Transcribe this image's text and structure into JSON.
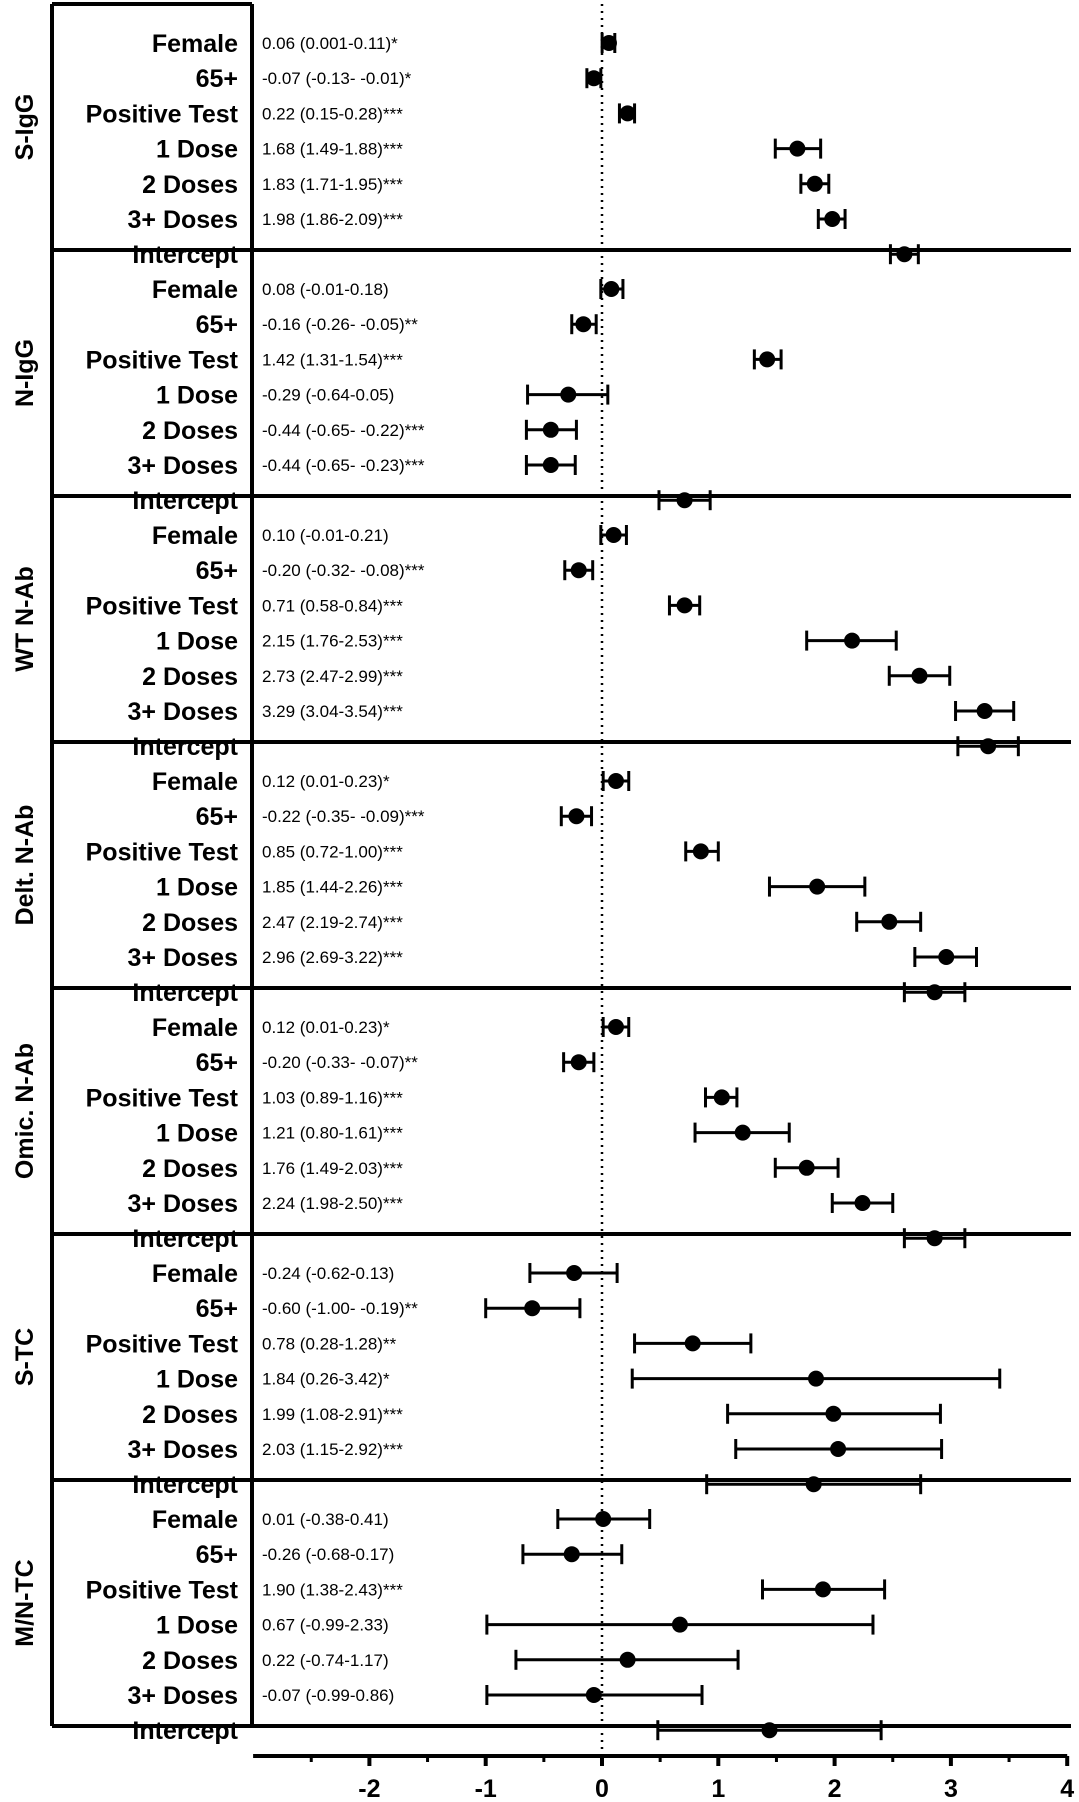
{
  "chart_data": {
    "type": "forest",
    "xlim": [
      -3,
      4
    ],
    "x_ticks": [
      "-2",
      "-1",
      "0",
      "1",
      "2",
      "3",
      "4"
    ],
    "x_tick_values": [
      -2,
      -1,
      0,
      1,
      2,
      3,
      4
    ],
    "reference_line": 0,
    "grid": false,
    "row_labels": [
      "Female",
      "65+",
      "Positive Test",
      "1 Dose",
      "2 Doses",
      "3+ Doses",
      "Intercept"
    ],
    "panels": [
      {
        "name": "S-IgG",
        "rows": [
          {
            "label": "Female",
            "estimate": 0.06,
            "lower": 0.001,
            "upper": 0.11,
            "text": "0.06 (0.001-0.11)*"
          },
          {
            "label": "65+",
            "estimate": -0.07,
            "lower": -0.13,
            "upper": -0.01,
            "text": "-0.07 (-0.13- -0.01)*"
          },
          {
            "label": "Positive Test",
            "estimate": 0.22,
            "lower": 0.15,
            "upper": 0.28,
            "text": "0.22 (0.15-0.28)***"
          },
          {
            "label": "1 Dose",
            "estimate": 1.68,
            "lower": 1.49,
            "upper": 1.88,
            "text": "1.68 (1.49-1.88)***"
          },
          {
            "label": "2 Doses",
            "estimate": 1.83,
            "lower": 1.71,
            "upper": 1.95,
            "text": "1.83 (1.71-1.95)***"
          },
          {
            "label": "3+ Doses",
            "estimate": 1.98,
            "lower": 1.86,
            "upper": 2.09,
            "text": "1.98 (1.86-2.09)***"
          },
          {
            "label": "Intercept",
            "estimate": 2.6,
            "lower": 2.48,
            "upper": 2.72,
            "text": ""
          }
        ]
      },
      {
        "name": "N-IgG",
        "rows": [
          {
            "label": "Female",
            "estimate": 0.08,
            "lower": -0.01,
            "upper": 0.18,
            "text": "0.08 (-0.01-0.18)"
          },
          {
            "label": "65+",
            "estimate": -0.16,
            "lower": -0.26,
            "upper": -0.05,
            "text": "-0.16 (-0.26- -0.05)**"
          },
          {
            "label": "Positive Test",
            "estimate": 1.42,
            "lower": 1.31,
            "upper": 1.54,
            "text": "1.42 (1.31-1.54)***"
          },
          {
            "label": "1 Dose",
            "estimate": -0.29,
            "lower": -0.64,
            "upper": 0.05,
            "text": "-0.29 (-0.64-0.05)"
          },
          {
            "label": "2 Doses",
            "estimate": -0.44,
            "lower": -0.65,
            "upper": -0.22,
            "text": "-0.44 (-0.65- -0.22)***"
          },
          {
            "label": "3+ Doses",
            "estimate": -0.44,
            "lower": -0.65,
            "upper": -0.23,
            "text": "-0.44 (-0.65- -0.23)***"
          },
          {
            "label": "Intercept",
            "estimate": 0.71,
            "lower": 0.49,
            "upper": 0.93,
            "text": ""
          }
        ]
      },
      {
        "name": "WT N-Ab",
        "rows": [
          {
            "label": "Female",
            "estimate": 0.1,
            "lower": -0.01,
            "upper": 0.21,
            "text": "0.10 (-0.01-0.21)"
          },
          {
            "label": "65+",
            "estimate": -0.2,
            "lower": -0.32,
            "upper": -0.08,
            "text": "-0.20 (-0.32- -0.08)***"
          },
          {
            "label": "Positive Test",
            "estimate": 0.71,
            "lower": 0.58,
            "upper": 0.84,
            "text": "0.71 (0.58-0.84)***"
          },
          {
            "label": "1 Dose",
            "estimate": 2.15,
            "lower": 1.76,
            "upper": 2.53,
            "text": "2.15 (1.76-2.53)***"
          },
          {
            "label": "2 Doses",
            "estimate": 2.73,
            "lower": 2.47,
            "upper": 2.99,
            "text": "2.73 (2.47-2.99)***"
          },
          {
            "label": "3+ Doses",
            "estimate": 3.29,
            "lower": 3.04,
            "upper": 3.54,
            "text": "3.29 (3.04-3.54)***"
          },
          {
            "label": "Intercept",
            "estimate": 3.32,
            "lower": 3.06,
            "upper": 3.58,
            "text": ""
          }
        ]
      },
      {
        "name": "Delt. N-Ab",
        "rows": [
          {
            "label": "Female",
            "estimate": 0.12,
            "lower": 0.01,
            "upper": 0.23,
            "text": "0.12 (0.01-0.23)*"
          },
          {
            "label": "65+",
            "estimate": -0.22,
            "lower": -0.35,
            "upper": -0.09,
            "text": "-0.22 (-0.35- -0.09)***"
          },
          {
            "label": "Positive Test",
            "estimate": 0.85,
            "lower": 0.72,
            "upper": 1.0,
            "text": "0.85 (0.72-1.00)***"
          },
          {
            "label": "1 Dose",
            "estimate": 1.85,
            "lower": 1.44,
            "upper": 2.26,
            "text": "1.85 (1.44-2.26)***"
          },
          {
            "label": "2 Doses",
            "estimate": 2.47,
            "lower": 2.19,
            "upper": 2.74,
            "text": "2.47 (2.19-2.74)***"
          },
          {
            "label": "3+ Doses",
            "estimate": 2.96,
            "lower": 2.69,
            "upper": 3.22,
            "text": "2.96 (2.69-3.22)***"
          },
          {
            "label": "Intercept",
            "estimate": 2.86,
            "lower": 2.6,
            "upper": 3.12,
            "text": ""
          }
        ]
      },
      {
        "name": "Omic. N-Ab",
        "rows": [
          {
            "label": "Female",
            "estimate": 0.12,
            "lower": 0.01,
            "upper": 0.23,
            "text": "0.12 (0.01-0.23)*"
          },
          {
            "label": "65+",
            "estimate": -0.2,
            "lower": -0.33,
            "upper": -0.07,
            "text": "-0.20 (-0.33- -0.07)**"
          },
          {
            "label": "Positive Test",
            "estimate": 1.03,
            "lower": 0.89,
            "upper": 1.16,
            "text": "1.03 (0.89-1.16)***"
          },
          {
            "label": "1 Dose",
            "estimate": 1.21,
            "lower": 0.8,
            "upper": 1.61,
            "text": "1.21 (0.80-1.61)***"
          },
          {
            "label": "2 Doses",
            "estimate": 1.76,
            "lower": 1.49,
            "upper": 2.03,
            "text": "1.76 (1.49-2.03)***"
          },
          {
            "label": "3+ Doses",
            "estimate": 2.24,
            "lower": 1.98,
            "upper": 2.5,
            "text": "2.24 (1.98-2.50)***"
          },
          {
            "label": "Intercept",
            "estimate": 2.86,
            "lower": 2.6,
            "upper": 3.12,
            "text": ""
          }
        ]
      },
      {
        "name": "S-TC",
        "rows": [
          {
            "label": "Female",
            "estimate": -0.24,
            "lower": -0.62,
            "upper": 0.13,
            "text": "-0.24 (-0.62-0.13)"
          },
          {
            "label": "65+",
            "estimate": -0.6,
            "lower": -1.0,
            "upper": -0.19,
            "text": "-0.60 (-1.00- -0.19)**"
          },
          {
            "label": "Positive Test",
            "estimate": 0.78,
            "lower": 0.28,
            "upper": 1.28,
            "text": "0.78 (0.28-1.28)**"
          },
          {
            "label": "1 Dose",
            "estimate": 1.84,
            "lower": 0.26,
            "upper": 3.42,
            "text": "1.84 (0.26-3.42)*"
          },
          {
            "label": "2 Doses",
            "estimate": 1.99,
            "lower": 1.08,
            "upper": 2.91,
            "text": "1.99 (1.08-2.91)***"
          },
          {
            "label": "3+ Doses",
            "estimate": 2.03,
            "lower": 1.15,
            "upper": 2.92,
            "text": "2.03 (1.15-2.92)***"
          },
          {
            "label": "Intercept",
            "estimate": 1.82,
            "lower": 0.9,
            "upper": 2.74,
            "text": ""
          }
        ]
      },
      {
        "name": "M/N-TC",
        "rows": [
          {
            "label": "Female",
            "estimate": 0.01,
            "lower": -0.38,
            "upper": 0.41,
            "text": "0.01 (-0.38-0.41)"
          },
          {
            "label": "65+",
            "estimate": -0.26,
            "lower": -0.68,
            "upper": 0.17,
            "text": "-0.26 (-0.68-0.17)"
          },
          {
            "label": "Positive Test",
            "estimate": 1.9,
            "lower": 1.38,
            "upper": 2.43,
            "text": "1.90 (1.38-2.43)***"
          },
          {
            "label": "1 Dose",
            "estimate": 0.67,
            "lower": -0.99,
            "upper": 2.33,
            "text": "0.67 (-0.99-2.33)"
          },
          {
            "label": "2 Doses",
            "estimate": 0.22,
            "lower": -0.74,
            "upper": 1.17,
            "text": "0.22 (-0.74-1.17)"
          },
          {
            "label": "3+ Doses",
            "estimate": -0.07,
            "lower": -0.99,
            "upper": 0.86,
            "text": "-0.07 (-0.99-0.86)"
          },
          {
            "label": "Intercept",
            "estimate": 1.44,
            "lower": 0.48,
            "upper": 2.4,
            "text": ""
          }
        ]
      }
    ]
  }
}
